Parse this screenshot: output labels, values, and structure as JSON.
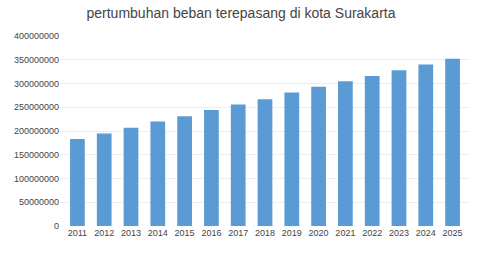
{
  "chart_data": {
    "type": "bar",
    "title": "pertumbuhan beban terepasang di kota Surakarta",
    "categories": [
      "2011",
      "2012",
      "2013",
      "2014",
      "2015",
      "2016",
      "2017",
      "2018",
      "2019",
      "2020",
      "2021",
      "2022",
      "2023",
      "2024",
      "2025"
    ],
    "values": [
      183000000,
      195000000,
      207000000,
      220000000,
      231000000,
      244000000,
      256000000,
      267000000,
      281000000,
      293000000,
      305000000,
      316000000,
      328000000,
      340000000,
      352000000
    ],
    "color": "#5b9bd5",
    "ylim": [
      0,
      400000000
    ],
    "yticks": [
      0,
      50000000,
      100000000,
      150000000,
      200000000,
      250000000,
      300000000,
      350000000,
      400000000
    ],
    "grid": true
  }
}
